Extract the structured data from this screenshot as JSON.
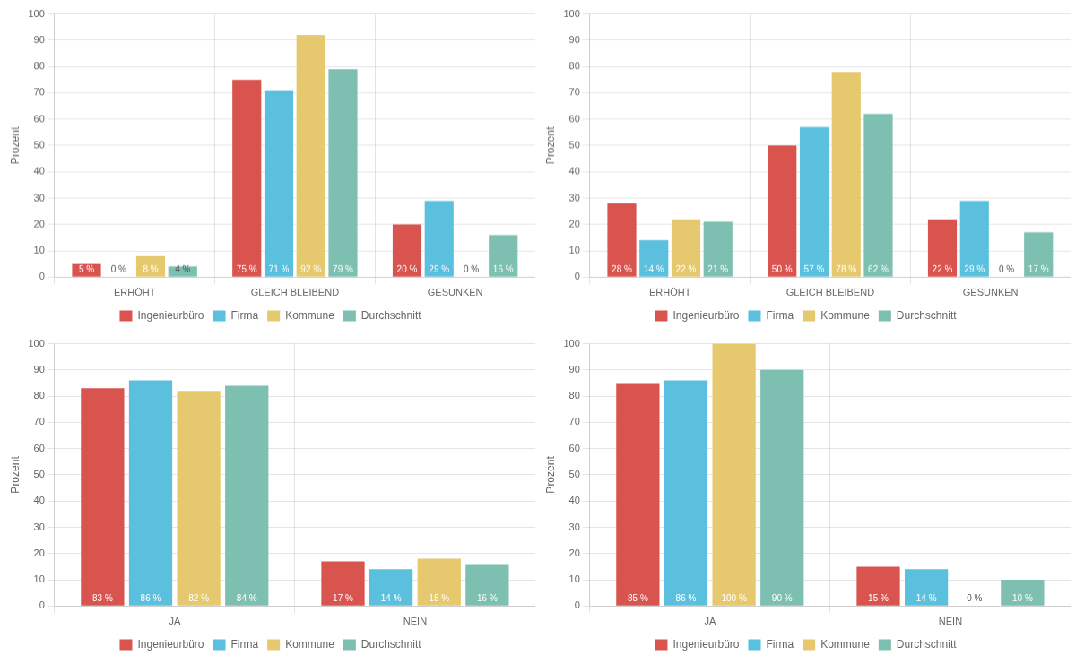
{
  "chart_data": [
    {
      "type": "bar",
      "categories": [
        "ERHÖHT",
        "GLEICH BLEIBEND",
        "GESUNKEN"
      ],
      "series": [
        {
          "name": "Ingenieurbüro",
          "color": "#d9534f",
          "values": [
            5,
            75,
            20
          ],
          "value_labels": [
            "5 %",
            "75 %",
            "20 %"
          ]
        },
        {
          "name": "Firma",
          "color": "#5bc0de",
          "values": [
            0,
            71,
            29
          ],
          "value_labels": [
            "0 %",
            "71 %",
            "29 %"
          ]
        },
        {
          "name": "Kommune",
          "color": "#e6c96e",
          "values": [
            8,
            92,
            0
          ],
          "value_labels": [
            "8 %",
            "92 %",
            "0 %"
          ]
        },
        {
          "name": "Durchschnitt",
          "color": "#7dbfb0",
          "values": [
            4,
            79,
            16
          ],
          "value_labels": [
            "4 %",
            "79 %",
            "16 %"
          ]
        }
      ],
      "y_label": "Prozent",
      "ylim": [
        0,
        100
      ],
      "yticks": [
        0,
        10,
        20,
        30,
        40,
        50,
        60,
        70,
        80,
        90,
        100
      ],
      "grid": true,
      "legend": "bottom",
      "data_labels": true
    },
    {
      "type": "bar",
      "categories": [
        "ERHÖHT",
        "GLEICH BLEIBEND",
        "GESUNKEN"
      ],
      "series": [
        {
          "name": "Ingenieurbüro",
          "color": "#d9534f",
          "values": [
            28,
            50,
            22
          ],
          "value_labels": [
            "28 %",
            "50 %",
            "22 %"
          ]
        },
        {
          "name": "Firma",
          "color": "#5bc0de",
          "values": [
            14,
            57,
            29
          ],
          "value_labels": [
            "14 %",
            "57 %",
            "29 %"
          ]
        },
        {
          "name": "Kommune",
          "color": "#e6c96e",
          "values": [
            22,
            78,
            0
          ],
          "value_labels": [
            "22 %",
            "78 %",
            "0 %"
          ]
        },
        {
          "name": "Durchschnitt",
          "color": "#7dbfb0",
          "values": [
            21,
            62,
            17
          ],
          "value_labels": [
            "21 %",
            "62 %",
            "17 %"
          ]
        }
      ],
      "y_label": "Prozent",
      "ylim": [
        0,
        100
      ],
      "yticks": [
        0,
        10,
        20,
        30,
        40,
        50,
        60,
        70,
        80,
        90,
        100
      ],
      "grid": true,
      "legend": "bottom",
      "data_labels": true
    },
    {
      "type": "bar",
      "categories": [
        "JA",
        "NEIN"
      ],
      "series": [
        {
          "name": "Ingenieurbüro",
          "color": "#d9534f",
          "values": [
            83,
            17
          ],
          "value_labels": [
            "83 %",
            "17 %"
          ]
        },
        {
          "name": "Firma",
          "color": "#5bc0de",
          "values": [
            86,
            14
          ],
          "value_labels": [
            "86 %",
            "14 %"
          ]
        },
        {
          "name": "Kommune",
          "color": "#e6c96e",
          "values": [
            82,
            18
          ],
          "value_labels": [
            "82 %",
            "18 %"
          ]
        },
        {
          "name": "Durchschnitt",
          "color": "#7dbfb0",
          "values": [
            84,
            16
          ],
          "value_labels": [
            "84 %",
            "16 %"
          ]
        }
      ],
      "y_label": "Prozent",
      "ylim": [
        0,
        100
      ],
      "yticks": [
        0,
        10,
        20,
        30,
        40,
        50,
        60,
        70,
        80,
        90,
        100
      ],
      "grid": true,
      "legend": "bottom",
      "data_labels": true
    },
    {
      "type": "bar",
      "categories": [
        "JA",
        "NEIN"
      ],
      "series": [
        {
          "name": "Ingenieurbüro",
          "color": "#d9534f",
          "values": [
            85,
            15
          ],
          "value_labels": [
            "85 %",
            "15 %"
          ]
        },
        {
          "name": "Firma",
          "color": "#5bc0de",
          "values": [
            86,
            14
          ],
          "value_labels": [
            "86 %",
            "14 %"
          ]
        },
        {
          "name": "Kommune",
          "color": "#e6c96e",
          "values": [
            100,
            0
          ],
          "value_labels": [
            "100 %",
            "0 %"
          ]
        },
        {
          "name": "Durchschnitt",
          "color": "#7dbfb0",
          "values": [
            90,
            10
          ],
          "value_labels": [
            "90 %",
            "10 %"
          ]
        }
      ],
      "y_label": "Prozent",
      "ylim": [
        0,
        100
      ],
      "yticks": [
        0,
        10,
        20,
        30,
        40,
        50,
        60,
        70,
        80,
        90,
        100
      ],
      "grid": true,
      "legend": "bottom",
      "data_labels": true
    }
  ]
}
